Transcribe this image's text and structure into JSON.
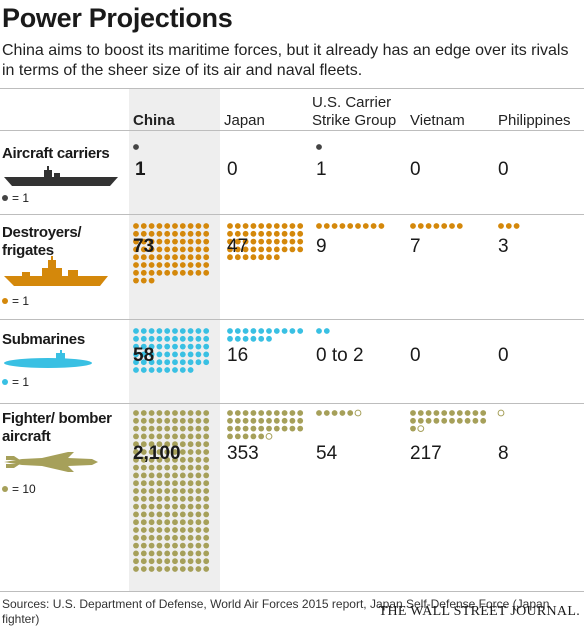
{
  "title": "Power Projections",
  "subtitle": "China aims to boost its maritime forces, but it already has an edge over its rivals in terms of the sheer size of its air and naval fleets.",
  "columns": [
    "China",
    "Japan",
    "U.S. Carrier Strike Group",
    "Vietnam",
    "Philippines"
  ],
  "rows": [
    {
      "label": "Aircraft carriers",
      "legend": "= 1",
      "icon": "aircraft-carrier-icon",
      "color": "#444444"
    },
    {
      "label": "Destroyers/ frigates",
      "legend": "= 1",
      "icon": "destroyer-icon",
      "color": "#d4880b"
    },
    {
      "label": "Submarines",
      "legend": "= 1",
      "icon": "submarine-icon",
      "color": "#39c0e3"
    },
    {
      "label": "Fighter/ bomber aircraft",
      "legend": "= 10",
      "icon": "fighter-jet-icon",
      "color": "#a6a05a"
    }
  ],
  "chart_data": {
    "type": "table",
    "title": "Power Projections",
    "categories": [
      "China",
      "Japan",
      "U.S. Carrier Strike Group",
      "Vietnam",
      "Philippines"
    ],
    "series": [
      {
        "name": "Aircraft carriers",
        "values": [
          1,
          0,
          1,
          0,
          0
        ],
        "labels": [
          "1",
          "0",
          "1",
          "0",
          "0"
        ],
        "unit_per_dot": 1
      },
      {
        "name": "Destroyers/frigates",
        "values": [
          73,
          47,
          9,
          7,
          3
        ],
        "labels": [
          "73",
          "47",
          "9",
          "7",
          "3"
        ],
        "unit_per_dot": 1
      },
      {
        "name": "Submarines",
        "values": [
          58,
          16,
          2,
          0,
          0
        ],
        "labels": [
          "58",
          "16",
          "0 to 2",
          "0",
          "0"
        ],
        "unit_per_dot": 1
      },
      {
        "name": "Fighter/bomber aircraft",
        "values": [
          2100,
          353,
          54,
          217,
          8
        ],
        "labels": [
          "2,100",
          "353",
          "54",
          "217",
          "8"
        ],
        "unit_per_dot": 10
      }
    ]
  },
  "source": "Sources: U.S. Department of Defense, World Air Forces 2015 report, Japan Self-Defense Force (Japan fighter)",
  "publisher": "THE WALL STREET JOURNAL."
}
